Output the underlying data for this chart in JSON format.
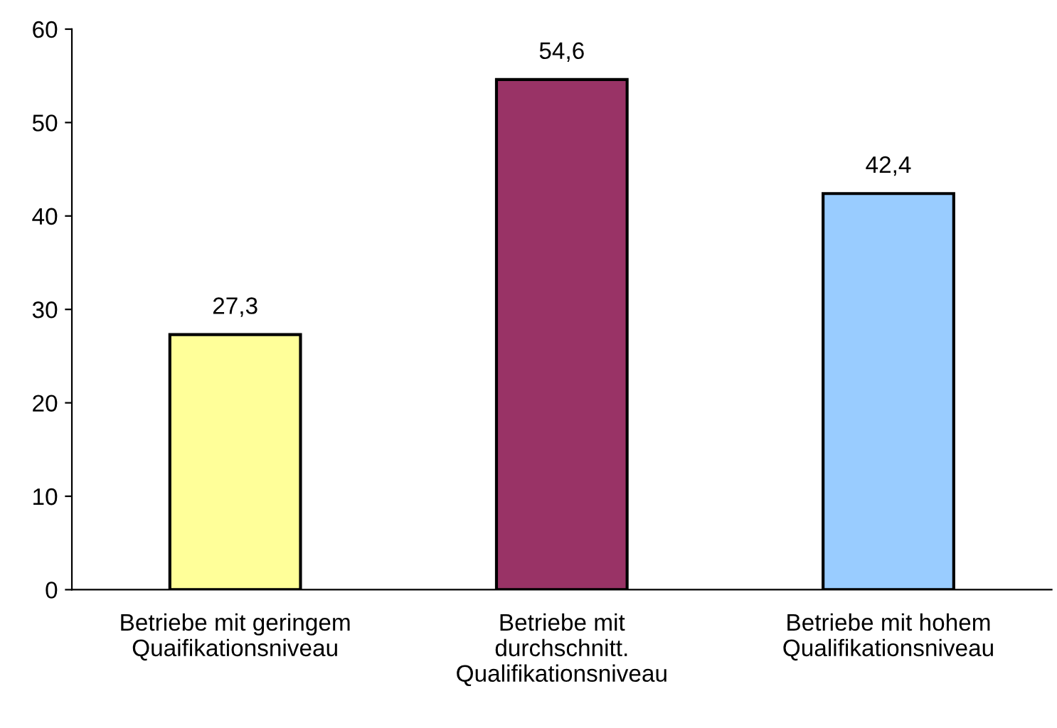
{
  "chart_data": {
    "type": "bar",
    "categories": [
      "Betriebe mit geringem\nQuaifikationsniveau",
      "Betriebe mit\ndurchschnitt.\nQualifikationsniveau",
      "Betriebe mit hohem\nQualifikationsniveau"
    ],
    "values": [
      27.3,
      54.6,
      42.4
    ],
    "colors": [
      "#ffff99",
      "#993366",
      "#99ccff"
    ],
    "value_labels": [
      "27,3",
      "54,6",
      "42,4"
    ],
    "ylim": [
      0,
      60
    ],
    "yticks": [
      0,
      10,
      20,
      30,
      40,
      50,
      60
    ],
    "grid": false,
    "legend": false
  }
}
